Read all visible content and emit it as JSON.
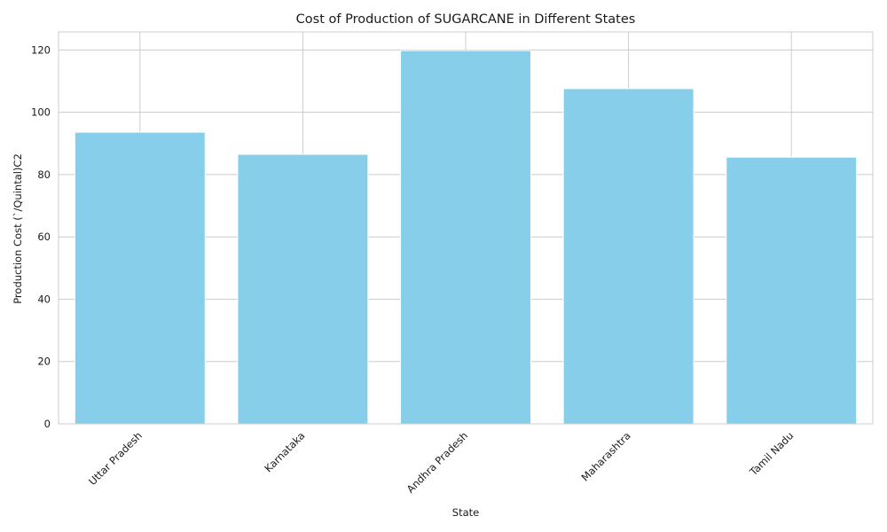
{
  "chart_data": {
    "type": "bar",
    "title": "Cost of Production of SUGARCANE in Different States",
    "xlabel": "State",
    "ylabel": "Production Cost (`/Quintal)C2",
    "categories": [
      "Uttar Pradesh",
      "Karnataka",
      "Andhra Pradesh",
      "Maharashtra",
      "Tamil Nadu"
    ],
    "values": [
      93.6,
      86.5,
      119.8,
      107.6,
      85.6
    ],
    "ylim": [
      0,
      125.8
    ],
    "yticks": [
      0,
      20,
      40,
      60,
      80,
      100,
      120
    ],
    "bar_color": "#87CEEB",
    "grid": true,
    "legend": "none"
  }
}
